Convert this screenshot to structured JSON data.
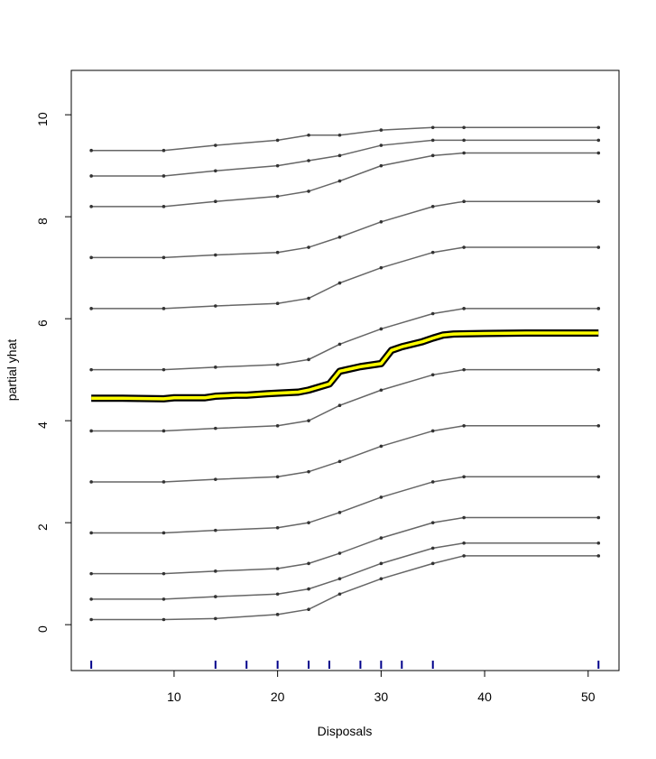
{
  "chart_data": {
    "type": "ice",
    "x_label": "Disposals",
    "y_label": "partial yhat",
    "xlim": [
      0.07,
      52.98
    ],
    "ylim": [
      -0.9,
      10.87
    ],
    "xticks": [
      10,
      20,
      30,
      40,
      50
    ],
    "yticks": [
      0,
      2,
      4,
      6,
      8,
      10
    ],
    "ice_color": "#666666",
    "pdp_color": "#ffff00",
    "rug_color": "#00008b",
    "ice_x": [
      2,
      9,
      14,
      20,
      23,
      26,
      30,
      35,
      38,
      51
    ],
    "ice_curves": [
      [
        0.1,
        0.1,
        0.12,
        0.2,
        0.3,
        0.6,
        0.9,
        1.2,
        1.35,
        1.35
      ],
      [
        0.5,
        0.5,
        0.55,
        0.6,
        0.7,
        0.9,
        1.2,
        1.5,
        1.6,
        1.6
      ],
      [
        1.0,
        1.0,
        1.05,
        1.1,
        1.2,
        1.4,
        1.7,
        2.0,
        2.1,
        2.1
      ],
      [
        1.8,
        1.8,
        1.85,
        1.9,
        2.0,
        2.2,
        2.5,
        2.8,
        2.9,
        2.9
      ],
      [
        2.8,
        2.8,
        2.85,
        2.9,
        3.0,
        3.2,
        3.5,
        3.8,
        3.9,
        3.9
      ],
      [
        3.8,
        3.8,
        3.85,
        3.9,
        4.0,
        4.3,
        4.6,
        4.9,
        5.0,
        5.0
      ],
      [
        5.0,
        5.0,
        5.05,
        5.1,
        5.2,
        5.5,
        5.8,
        6.1,
        6.2,
        6.2
      ],
      [
        6.2,
        6.2,
        6.25,
        6.3,
        6.4,
        6.7,
        7.0,
        7.3,
        7.4,
        7.4
      ],
      [
        7.2,
        7.2,
        7.25,
        7.3,
        7.4,
        7.6,
        7.9,
        8.2,
        8.3,
        8.3
      ],
      [
        8.2,
        8.2,
        8.3,
        8.4,
        8.5,
        8.7,
        9.0,
        9.2,
        9.25,
        9.25
      ],
      [
        8.8,
        8.8,
        8.9,
        9.0,
        9.1,
        9.2,
        9.4,
        9.5,
        9.5,
        9.5
      ],
      [
        9.3,
        9.3,
        9.4,
        9.5,
        9.6,
        9.6,
        9.7,
        9.75,
        9.75,
        9.75
      ]
    ],
    "pdp_x": [
      2,
      5,
      9,
      10,
      12,
      13,
      14,
      16,
      17,
      19,
      20,
      22,
      23,
      25,
      26,
      28,
      30,
      31,
      32,
      34,
      35,
      36,
      37,
      40,
      44,
      51
    ],
    "pdp_values": [
      4.44,
      4.44,
      4.43,
      4.45,
      4.45,
      4.45,
      4.48,
      4.5,
      4.5,
      4.53,
      4.54,
      4.56,
      4.6,
      4.72,
      4.97,
      5.06,
      5.12,
      5.38,
      5.45,
      5.55,
      5.62,
      5.68,
      5.7,
      5.71,
      5.72,
      5.72
    ],
    "rug": [
      2,
      14,
      17,
      20,
      23,
      25,
      28,
      30,
      32,
      35,
      51
    ]
  }
}
